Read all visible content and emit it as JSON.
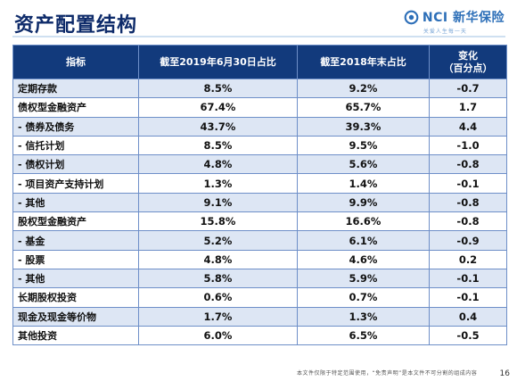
{
  "header": {
    "title": "资产配置结构",
    "logo_text": "NCI 新华保险",
    "logo_slogan": "关爱人生每一天"
  },
  "table": {
    "columns": [
      "指标",
      "截至2019年6月30日占比",
      "截至2018年末占比",
      "变化\n（百分点）"
    ],
    "rows": [
      [
        "定期存款",
        "8.5%",
        "9.2%",
        "-0.7"
      ],
      [
        "债权型金融资产",
        "67.4%",
        "65.7%",
        "1.7"
      ],
      [
        "- 债券及债务",
        "43.7%",
        "39.3%",
        "4.4"
      ],
      [
        "- 信托计划",
        "8.5%",
        "9.5%",
        "-1.0"
      ],
      [
        "- 债权计划",
        "4.8%",
        "5.6%",
        "-0.8"
      ],
      [
        "- 项目资产支持计划",
        "1.3%",
        "1.4%",
        "-0.1"
      ],
      [
        "- 其他",
        "9.1%",
        "9.9%",
        "-0.8"
      ],
      [
        "股权型金融资产",
        "15.8%",
        "16.6%",
        "-0.8"
      ],
      [
        "- 基金",
        "5.2%",
        "6.1%",
        "-0.9"
      ],
      [
        "- 股票",
        "4.8%",
        "4.6%",
        "0.2"
      ],
      [
        "- 其他",
        "5.8%",
        "5.9%",
        "-0.1"
      ],
      [
        "长期股权投资",
        "0.6%",
        "0.7%",
        "-0.1"
      ],
      [
        "现金及现金等价物",
        "1.7%",
        "1.3%",
        "0.4"
      ],
      [
        "其他投资",
        "6.0%",
        "6.5%",
        "-0.5"
      ]
    ]
  },
  "footer": {
    "disclaimer": "本文件仅限于特定范围使用，“免责声明”是本文件不可分割的组成内容",
    "page_number": "16"
  }
}
